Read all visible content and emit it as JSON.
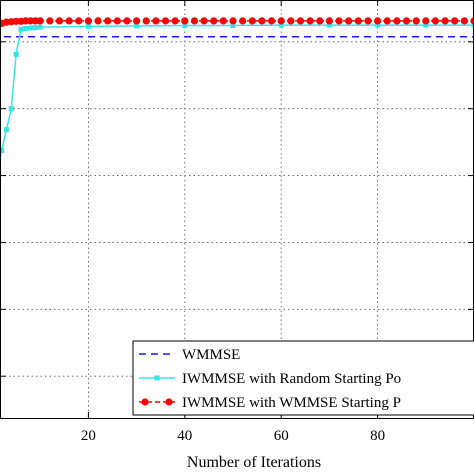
{
  "chart_data": {
    "type": "line",
    "title": "",
    "xlabel": "Number of Iterations",
    "ylabel": "",
    "xlim": [
      0,
      100
    ],
    "ylim": [
      0,
      1
    ],
    "x_ticks": [
      20,
      40,
      60,
      80
    ],
    "x_tick_labels": [
      "20",
      "40",
      "60",
      "80"
    ],
    "grid": true,
    "legend_position": "bottom-right",
    "series": [
      {
        "name": "WMMSE",
        "style": "dashed",
        "color": "#1a1aff",
        "x": [
          0,
          100
        ],
        "y": [
          0.912,
          0.912
        ]
      },
      {
        "name": "IWMMSE with Random Starting Po",
        "style": "solid-square-markers",
        "color": "#33e6e6",
        "x": [
          0,
          1,
          2,
          3,
          4,
          5,
          6,
          7,
          8,
          9,
          10,
          20,
          30,
          40,
          50,
          60,
          70,
          80,
          90,
          100
        ],
        "y": [
          0.48,
          0.58,
          0.64,
          0.69,
          0.74,
          0.87,
          0.93,
          0.932,
          0.933,
          0.934,
          0.935,
          0.937,
          0.938,
          0.939,
          0.939,
          0.94,
          0.94,
          0.94,
          0.94,
          0.94
        ]
      },
      {
        "name": "IWMMSE with WMMSE Starting P",
        "style": "dashed-circle-markers",
        "color": "#ff0000",
        "x": [
          0,
          1,
          2,
          3,
          4,
          5,
          6,
          7,
          8,
          9,
          10,
          12,
          14,
          16,
          18,
          20,
          22,
          24,
          26,
          28,
          30,
          32,
          34,
          36,
          38,
          40,
          42,
          44,
          46,
          48,
          50,
          52,
          54,
          56,
          58,
          60,
          62,
          64,
          66,
          68,
          70,
          72,
          74,
          76,
          78,
          80,
          82,
          84,
          86,
          88,
          90,
          92,
          94,
          96,
          98,
          100
        ],
        "y": [
          0.935,
          0.94,
          0.944,
          0.947,
          0.948,
          0.949,
          0.949,
          0.95,
          0.95,
          0.95,
          0.95,
          0.95,
          0.95,
          0.95,
          0.95,
          0.95,
          0.95,
          0.95,
          0.95,
          0.95,
          0.95,
          0.95,
          0.95,
          0.95,
          0.95,
          0.95,
          0.95,
          0.95,
          0.95,
          0.95,
          0.95,
          0.95,
          0.95,
          0.95,
          0.95,
          0.95,
          0.95,
          0.95,
          0.95,
          0.95,
          0.95,
          0.95,
          0.95,
          0.95,
          0.95,
          0.95,
          0.95,
          0.95,
          0.95,
          0.95,
          0.95,
          0.95,
          0.95,
          0.95,
          0.95,
          0.95
        ]
      }
    ]
  }
}
